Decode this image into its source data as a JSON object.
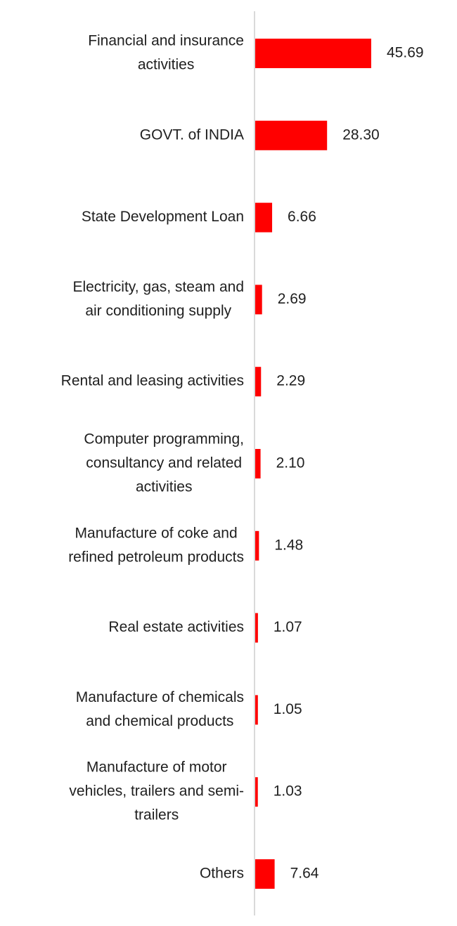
{
  "chart_data": {
    "type": "bar",
    "orientation": "horizontal",
    "categories": [
      "Financial and insurance activities",
      "GOVT. of INDIA",
      "State Development Loan",
      "Electricity, gas, steam and air conditioning supply",
      "Rental and leasing activities",
      "Computer programming, consultancy and related activities",
      "Manufacture of coke and refined petroleum products",
      "Real estate activities",
      "Manufacture of chemicals and chemical products",
      "Manufacture of motor vehicles, trailers and semi-trailers",
      "Others"
    ],
    "label_lines": [
      [
        "Financial and insurance",
        "activities"
      ],
      [
        "GOVT. of INDIA"
      ],
      [
        "State Development Loan"
      ],
      [
        "Electricity, gas, steam and",
        "air conditioning supply"
      ],
      [
        "Rental and leasing activities"
      ],
      [
        "Computer programming,",
        "consultancy and related",
        "activities"
      ],
      [
        "Manufacture of coke and",
        "refined petroleum products"
      ],
      [
        "Real estate activities"
      ],
      [
        "Manufacture of chemicals",
        "and chemical products"
      ],
      [
        "Manufacture of motor",
        "vehicles, trailers and semi-",
        "trailers"
      ],
      [
        "Others"
      ]
    ],
    "values": [
      45.69,
      28.3,
      6.66,
      2.69,
      2.29,
      2.1,
      1.48,
      1.07,
      1.05,
      1.03,
      7.64
    ],
    "value_labels": [
      "45.69",
      "28.30",
      "6.66",
      "2.69",
      "2.29",
      "2.10",
      "1.48",
      "1.07",
      "1.05",
      "1.03",
      "7.64"
    ],
    "title": "",
    "xlabel": "",
    "ylabel": "",
    "bar_color": "#ff0000",
    "axis_color": "#d9d9d9",
    "grid": false,
    "legend": "none"
  }
}
